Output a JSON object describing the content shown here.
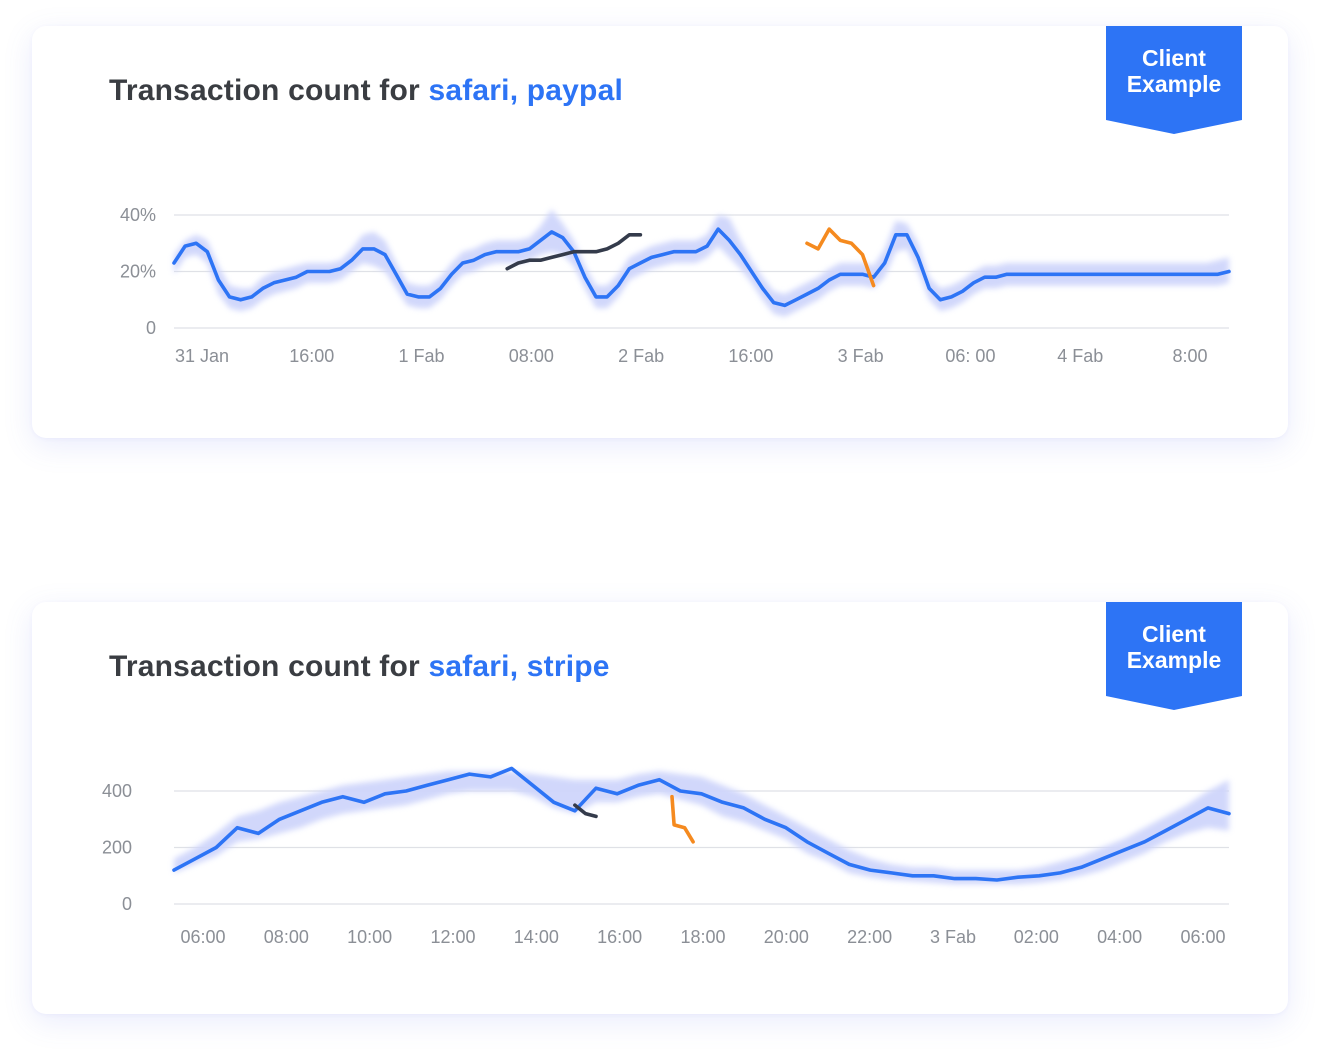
{
  "cards": [
    {
      "title_prefix": "Transaction count for ",
      "title_highlight": "safari, paypal",
      "badge": {
        "line1": "Client",
        "line2": "Example"
      },
      "chart_data": {
        "type": "line",
        "y_tick_labels": [
          "0",
          "20%",
          "40%"
        ],
        "x_tick_labels": [
          "31 Jan",
          "16:00",
          "1 Fab",
          "08:00",
          "2 Fab",
          "16:00",
          "3 Fab",
          "06: 00",
          "4 Fab",
          "8:00"
        ],
        "ylim": [
          0,
          40
        ],
        "xlim": [
          0,
          95
        ],
        "grid": true,
        "series": [
          {
            "color": "#2d74f5",
            "x": [
              0,
              1,
              2,
              3,
              4,
              5,
              6,
              7,
              8,
              9,
              10,
              11,
              12,
              13,
              14,
              15,
              16,
              17,
              18,
              19,
              20,
              21,
              22,
              23,
              24,
              25,
              26,
              27,
              28,
              29,
              30,
              31,
              32,
              33,
              34,
              35,
              36,
              37,
              38,
              39,
              40,
              41,
              42,
              43,
              44,
              45,
              46,
              47,
              48,
              49,
              50,
              51,
              52,
              53,
              54,
              55,
              56,
              57,
              58,
              59,
              60,
              61,
              62,
              63,
              64,
              65,
              66,
              67,
              68,
              69,
              70,
              71,
              72,
              73,
              74,
              75,
              76,
              77,
              78,
              79,
              80,
              81,
              82,
              83,
              84,
              85,
              86,
              87,
              88,
              89,
              90,
              91,
              92,
              93,
              94,
              95
            ],
            "y": [
              23,
              29,
              30,
              27,
              17,
              11,
              10,
              11,
              14,
              16,
              17,
              18,
              20,
              20,
              20,
              21,
              24,
              28,
              28,
              26,
              19,
              12,
              11,
              11,
              14,
              19,
              23,
              24,
              26,
              27,
              27,
              27,
              28,
              31,
              34,
              32,
              27,
              18,
              11,
              11,
              15,
              21,
              23,
              25,
              26,
              27,
              27,
              27,
              29,
              35,
              31,
              26,
              20,
              14,
              9,
              8,
              10,
              12,
              14,
              17,
              19,
              19,
              19,
              18,
              23,
              33,
              33,
              25,
              14,
              10,
              11,
              13,
              16,
              18,
              18,
              19,
              19,
              19,
              19,
              19,
              19,
              19,
              19,
              19,
              19,
              19,
              19,
              19,
              19,
              19,
              19,
              19,
              19,
              19,
              19,
              20
            ]
          },
          {
            "color": "#343b4b",
            "x": [
              30,
              31,
              32,
              33,
              34,
              35,
              36,
              37,
              38,
              39,
              40,
              41,
              42
            ],
            "y": [
              21,
              23,
              24,
              24,
              25,
              26,
              27,
              27,
              27,
              28,
              30,
              33,
              33
            ]
          },
          {
            "color": "#f58a1f",
            "x": [
              57,
              58,
              59,
              60,
              61,
              62,
              63
            ],
            "y": [
              30,
              28,
              35,
              31,
              30,
              26,
              15
            ]
          }
        ],
        "band": {
          "color": "#cfd5fb",
          "upper": [
            26,
            31,
            33,
            31,
            22,
            15,
            14,
            14,
            18,
            20,
            21,
            22,
            23,
            23,
            23,
            24,
            28,
            33,
            34,
            31,
            23,
            16,
            15,
            15,
            18,
            23,
            27,
            28,
            30,
            31,
            31,
            31,
            32,
            36,
            42,
            37,
            31,
            22,
            15,
            15,
            19,
            25,
            27,
            29,
            30,
            31,
            31,
            31,
            33,
            40,
            39,
            31,
            24,
            18,
            13,
            12,
            14,
            16,
            18,
            21,
            23,
            23,
            23,
            22,
            28,
            38,
            37,
            30,
            18,
            14,
            15,
            17,
            20,
            22,
            22,
            23,
            23,
            23,
            23,
            23,
            23,
            23,
            23,
            23,
            23,
            23,
            23,
            23,
            23,
            23,
            23,
            23,
            23,
            23,
            24,
            25
          ],
          "lower": [
            19,
            25,
            26,
            23,
            12,
            7,
            6,
            7,
            10,
            12,
            13,
            14,
            16,
            16,
            16,
            17,
            20,
            23,
            22,
            20,
            14,
            8,
            7,
            7,
            10,
            15,
            19,
            20,
            22,
            23,
            23,
            23,
            24,
            26,
            27,
            26,
            22,
            14,
            7,
            7,
            11,
            17,
            19,
            21,
            22,
            23,
            23,
            23,
            25,
            29,
            25,
            21,
            16,
            10,
            5,
            4,
            6,
            8,
            10,
            13,
            15,
            15,
            15,
            14,
            18,
            27,
            28,
            20,
            10,
            6,
            7,
            9,
            12,
            14,
            14,
            15,
            15,
            15,
            15,
            15,
            15,
            15,
            15,
            15,
            15,
            15,
            15,
            15,
            15,
            15,
            15,
            15,
            15,
            15,
            15,
            16
          ]
        }
      }
    },
    {
      "title_prefix": "Transaction count for ",
      "title_highlight": "safari, stripe",
      "badge": {
        "line1": "Client",
        "line2": "Example"
      },
      "chart_data": {
        "type": "line",
        "y_tick_labels": [
          "0",
          "200",
          "400"
        ],
        "x_tick_labels": [
          "06:00",
          "08:00",
          "10:00",
          "12:00",
          "14:00",
          "16:00",
          "18:00",
          "20:00",
          "22:00",
          "3 Fab",
          "02:00",
          "04:00",
          "06:00"
        ],
        "ylim": [
          0,
          400
        ],
        "xlim": [
          0,
          25
        ],
        "grid": true,
        "series": [
          {
            "color": "#2d74f5",
            "x": [
              0,
              0.5,
              1,
              1.5,
              2,
              2.5,
              3,
              3.5,
              4,
              4.5,
              5,
              5.5,
              6,
              6.5,
              7,
              7.5,
              8,
              8.5,
              9,
              9.5,
              10,
              10.5,
              11,
              11.5,
              12,
              12.5,
              13,
              13.5,
              14,
              14.5,
              15,
              15.5,
              16,
              16.5,
              17,
              17.5,
              18,
              18.5,
              19,
              19.5,
              20,
              20.5,
              21,
              21.5,
              22,
              22.5,
              23,
              23.5,
              24,
              24.5,
              25
            ],
            "y": [
              120,
              160,
              200,
              270,
              250,
              300,
              330,
              360,
              380,
              360,
              390,
              400,
              420,
              440,
              460,
              450,
              480,
              420,
              360,
              330,
              410,
              390,
              420,
              440,
              400,
              390,
              360,
              340,
              300,
              270,
              220,
              180,
              140,
              120,
              110,
              100,
              100,
              90,
              90,
              85,
              95,
              100,
              110,
              130,
              160,
              190,
              220,
              260,
              300,
              340,
              320
            ]
          },
          {
            "color": "#343b4b",
            "x": [
              9.5,
              9.75,
              10
            ],
            "y": [
              350,
              320,
              310
            ]
          },
          {
            "color": "#f58a1f",
            "x": [
              11.8,
              11.85,
              12.1,
              12.3
            ],
            "y": [
              380,
              280,
              270,
              220
            ]
          }
        ],
        "band": {
          "color": "#cfd5fb",
          "upper": [
            160,
            200,
            250,
            310,
            330,
            360,
            380,
            400,
            420,
            430,
            440,
            450,
            460,
            470,
            470,
            470,
            470,
            460,
            450,
            440,
            440,
            440,
            460,
            470,
            460,
            450,
            420,
            390,
            350,
            310,
            270,
            230,
            190,
            160,
            140,
            130,
            130,
            120,
            120,
            120,
            120,
            130,
            150,
            170,
            200,
            230,
            270,
            310,
            350,
            400,
            440
          ],
          "lower": [
            110,
            140,
            170,
            220,
            230,
            250,
            270,
            300,
            320,
            330,
            340,
            350,
            370,
            390,
            400,
            400,
            400,
            380,
            340,
            320,
            360,
            360,
            380,
            390,
            370,
            350,
            310,
            290,
            260,
            230,
            180,
            150,
            110,
            95,
            85,
            80,
            75,
            70,
            70,
            70,
            70,
            75,
            85,
            100,
            120,
            150,
            180,
            220,
            250,
            270,
            260
          ]
        }
      }
    }
  ]
}
